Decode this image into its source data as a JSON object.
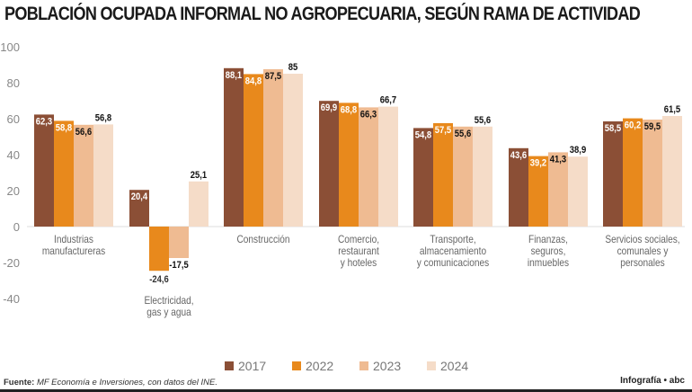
{
  "title": "POBLACIÓN OCUPADA INFORMAL NO AGROPECUARIA, SEGÚN RAMA DE ACTIVIDAD",
  "chart_data": {
    "type": "bar",
    "title": "POBLACIÓN OCUPADA INFORMAL NO AGROPECUARIA, SEGÚN RAMA DE ACTIVIDAD",
    "categories": [
      [
        "Industrias",
        "manufactureras"
      ],
      [
        "Electricidad,",
        "gas y agua"
      ],
      [
        "Construcción"
      ],
      [
        "Comercio,",
        "restaurant",
        "y hoteles"
      ],
      [
        "Transporte,",
        "almacenamiento",
        "y comunicaciones"
      ],
      [
        "Finanzas,",
        "seguros,",
        "inmuebles"
      ],
      [
        "Servicios sociales,",
        "comunales y",
        "personales"
      ]
    ],
    "series": [
      {
        "name": "2017",
        "color": "#8b4f36",
        "values": [
          62.3,
          20.4,
          88.1,
          69.9,
          54.8,
          43.6,
          58.5
        ],
        "labels": [
          "62,3",
          "20,4",
          "88,1",
          "69,9",
          "54,8",
          "43,6",
          "58,5"
        ]
      },
      {
        "name": "2022",
        "color": "#e8891c",
        "values": [
          58.8,
          -24.6,
          84.8,
          68.8,
          57.5,
          39.2,
          60.2
        ],
        "labels": [
          "58,8",
          "-24,6",
          "84,8",
          "68,8",
          "57,5",
          "39,2",
          "60,2"
        ]
      },
      {
        "name": "2023",
        "color": "#efbb92",
        "values": [
          56.6,
          -17.5,
          87.5,
          66.3,
          55.6,
          41.3,
          59.5
        ],
        "labels": [
          "56,6",
          "-17,5",
          "87,5",
          "66,3",
          "55,6",
          "41,3",
          "59,5"
        ]
      },
      {
        "name": "2024",
        "color": "#f5dcc8",
        "values": [
          56.8,
          25.1,
          85,
          66.7,
          55.6,
          38.9,
          61.5
        ],
        "labels": [
          "56,8",
          "25,1",
          "85",
          "66,7",
          "55,6",
          "38,9",
          "61,5"
        ]
      }
    ],
    "ylim": [
      -40,
      100
    ],
    "yticks": [
      "100",
      "80",
      "60",
      "40",
      "20",
      "0",
      "-20",
      "-40"
    ],
    "legend": "bottom",
    "grid": false
  },
  "source_label": "Fuente:",
  "source_text": "MF Economía e Inversiones, con datos del INE.",
  "credit": "Infografía • abc"
}
